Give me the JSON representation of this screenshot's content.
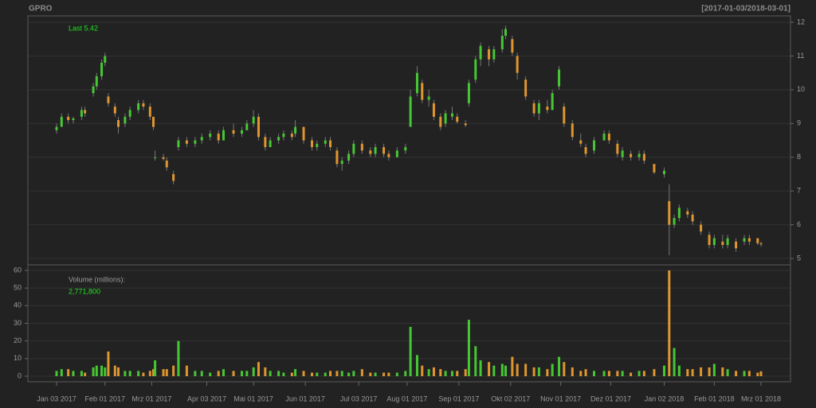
{
  "chart_data": {
    "type": "candlestick",
    "title": "GPRO",
    "range_text": "[2017-01-03/2018-03-01]",
    "last_text": "Last 5.42",
    "volume_title": "Volume (millions):",
    "volume_last_text": "2,771,800",
    "up_color": "#46c734",
    "down_color": "#e0962e",
    "xlim": [
      "2017-01-03",
      "2018-03-01"
    ],
    "xticks": [
      {
        "value": "2017-01-03",
        "label": "Jan 03 2017"
      },
      {
        "value": "2017-02-01",
        "label": "Feb 01 2017"
      },
      {
        "value": "2017-03-01",
        "label": "Mrz 01 2017"
      },
      {
        "value": "2017-04-03",
        "label": "Apr 03 2017"
      },
      {
        "value": "2017-05-01",
        "label": "Mai 01 2017"
      },
      {
        "value": "2017-06-01",
        "label": "Jun 01 2017"
      },
      {
        "value": "2017-07-03",
        "label": "Jul 03 2017"
      },
      {
        "value": "2017-08-01",
        "label": "Aug 01 2017"
      },
      {
        "value": "2017-09-01",
        "label": "Sep 01 2017"
      },
      {
        "value": "2017-10-02",
        "label": "Okt 02 2017"
      },
      {
        "value": "2017-11-01",
        "label": "Nov 01 2017"
      },
      {
        "value": "2017-12-01",
        "label": "Dez 01 2017"
      },
      {
        "value": "2018-01-02",
        "label": "Jan 02 2018"
      },
      {
        "value": "2018-02-01",
        "label": "Feb 01 2018"
      },
      {
        "value": "2018-03-01",
        "label": "Mrz 01 2018"
      }
    ],
    "ylim": [
      5,
      12
    ],
    "yticks": [
      5,
      6,
      7,
      8,
      9,
      10,
      11,
      12
    ],
    "y2lim": [
      0,
      60
    ],
    "y2ticks": [
      0,
      10,
      20,
      30,
      40,
      50,
      60
    ],
    "x": [
      "2017-01-03",
      "2017-01-06",
      "2017-01-10",
      "2017-01-13",
      "2017-01-18",
      "2017-01-20",
      "2017-01-25",
      "2017-01-27",
      "2017-01-30",
      "2017-02-01",
      "2017-02-03",
      "2017-02-07",
      "2017-02-09",
      "2017-02-13",
      "2017-02-16",
      "2017-02-21",
      "2017-02-24",
      "2017-02-28",
      "2017-03-02",
      "2017-03-03",
      "2017-03-08",
      "2017-03-10",
      "2017-03-14",
      "2017-03-17",
      "2017-03-22",
      "2017-03-27",
      "2017-03-31",
      "2017-04-05",
      "2017-04-10",
      "2017-04-13",
      "2017-04-19",
      "2017-04-24",
      "2017-04-27",
      "2017-05-01",
      "2017-05-04",
      "2017-05-08",
      "2017-05-11",
      "2017-05-16",
      "2017-05-19",
      "2017-05-24",
      "2017-05-26",
      "2017-05-31",
      "2017-06-05",
      "2017-06-08",
      "2017-06-13",
      "2017-06-16",
      "2017-06-20",
      "2017-06-23",
      "2017-06-27",
      "2017-06-30",
      "2017-07-05",
      "2017-07-10",
      "2017-07-13",
      "2017-07-18",
      "2017-07-21",
      "2017-07-26",
      "2017-07-31",
      "2017-08-03",
      "2017-08-07",
      "2017-08-10",
      "2017-08-14",
      "2017-08-17",
      "2017-08-21",
      "2017-08-24",
      "2017-08-28",
      "2017-08-31",
      "2017-09-05",
      "2017-09-07",
      "2017-09-11",
      "2017-09-14",
      "2017-09-19",
      "2017-09-22",
      "2017-09-27",
      "2017-09-29",
      "2017-10-03",
      "2017-10-06",
      "2017-10-11",
      "2017-10-16",
      "2017-10-19",
      "2017-10-24",
      "2017-10-27",
      "2017-10-31",
      "2017-11-03",
      "2017-11-08",
      "2017-11-13",
      "2017-11-16",
      "2017-11-21",
      "2017-11-27",
      "2017-11-30",
      "2017-12-05",
      "2017-12-08",
      "2017-12-13",
      "2017-12-18",
      "2017-12-21",
      "2017-12-27",
      "2018-01-02",
      "2018-01-05",
      "2018-01-08",
      "2018-01-11",
      "2018-01-16",
      "2018-01-19",
      "2018-01-24",
      "2018-01-29",
      "2018-02-01",
      "2018-02-06",
      "2018-02-09",
      "2018-02-14",
      "2018-02-19",
      "2018-02-22",
      "2018-02-27",
      "2018-03-01"
    ],
    "open": [
      8.8,
      8.9,
      9.2,
      9.1,
      9.2,
      9.4,
      9.9,
      10.1,
      10.4,
      10.8,
      9.8,
      9.5,
      9.1,
      9.0,
      9.2,
      9.4,
      9.6,
      9.5,
      9.2,
      8.0,
      8.0,
      7.9,
      7.5,
      8.3,
      8.5,
      8.4,
      8.5,
      8.6,
      8.7,
      8.5,
      8.8,
      8.7,
      8.8,
      9.0,
      9.2,
      8.6,
      8.3,
      8.5,
      8.6,
      8.7,
      8.7,
      8.9,
      8.5,
      8.3,
      8.4,
      8.5,
      8.2,
      7.8,
      7.9,
      8.1,
      8.4,
      8.2,
      8.1,
      8.3,
      8.1,
      8.0,
      8.2,
      8.9,
      9.9,
      10.2,
      9.7,
      9.6,
      9.2,
      9.0,
      9.2,
      9.2,
      9.0,
      9.6,
      10.3,
      10.9,
      11.2,
      10.9,
      11.2,
      11.6,
      11.5,
      11.0,
      10.3,
      9.6,
      9.3,
      9.5,
      9.4,
      10.1,
      9.5,
      9.0,
      8.5,
      8.3,
      8.2,
      8.5,
      8.7,
      8.4,
      8.0,
      8.1,
      8.0,
      8.1,
      7.8,
      7.5,
      6.7,
      6.0,
      6.2,
      6.4,
      6.3,
      6.0,
      5.7,
      5.4,
      5.5,
      5.4,
      5.5,
      5.5,
      5.6,
      5.6,
      5.45
    ],
    "high": [
      9.0,
      9.3,
      9.3,
      9.2,
      9.5,
      9.5,
      10.2,
      10.5,
      10.9,
      11.1,
      9.9,
      9.6,
      9.2,
      9.3,
      9.5,
      9.7,
      9.7,
      9.6,
      9.2,
      8.2,
      8.1,
      8.0,
      7.6,
      8.6,
      8.6,
      8.6,
      8.7,
      8.8,
      8.8,
      8.9,
      9.0,
      8.9,
      9.1,
      9.4,
      9.3,
      8.7,
      8.6,
      8.7,
      8.8,
      8.8,
      9.1,
      8.9,
      8.6,
      8.5,
      8.6,
      8.6,
      8.3,
      8.0,
      8.2,
      8.5,
      8.5,
      8.3,
      8.4,
      8.4,
      8.2,
      8.3,
      8.4,
      10.0,
      10.7,
      10.3,
      10.0,
      9.7,
      9.3,
      9.4,
      9.5,
      9.3,
      9.1,
      10.3,
      11.0,
      11.4,
      11.3,
      11.3,
      11.8,
      11.9,
      11.6,
      11.1,
      10.4,
      9.7,
      9.7,
      9.7,
      10.0,
      10.7,
      9.6,
      9.1,
      8.7,
      8.4,
      8.6,
      8.8,
      8.8,
      8.5,
      8.3,
      8.2,
      8.2,
      8.2,
      7.8,
      7.7,
      7.2,
      6.3,
      6.6,
      6.5,
      6.4,
      6.1,
      5.8,
      5.7,
      5.7,
      5.7,
      5.6,
      5.7,
      5.7,
      5.6,
      5.5
    ],
    "low": [
      8.7,
      8.9,
      9.0,
      9.0,
      9.1,
      9.2,
      9.8,
      10.0,
      10.3,
      10.7,
      9.5,
      9.2,
      8.7,
      8.9,
      9.1,
      9.3,
      9.4,
      9.1,
      8.8,
      7.9,
      7.9,
      7.6,
      7.2,
      8.2,
      8.3,
      8.3,
      8.4,
      8.5,
      8.4,
      8.5,
      8.6,
      8.6,
      8.8,
      8.9,
      8.5,
      8.2,
      8.3,
      8.4,
      8.5,
      8.5,
      8.6,
      8.4,
      8.2,
      8.2,
      8.3,
      8.2,
      7.7,
      7.6,
      7.8,
      8.0,
      8.1,
      8.0,
      8.0,
      8.0,
      7.9,
      8.0,
      8.1,
      8.9,
      9.8,
      9.6,
      9.5,
      9.1,
      8.8,
      8.9,
      9.1,
      9.0,
      8.9,
      9.5,
      10.2,
      10.7,
      10.7,
      10.8,
      11.1,
      11.5,
      11.0,
      10.3,
      9.7,
      9.2,
      9.1,
      9.3,
      9.4,
      10.0,
      8.9,
      8.5,
      8.3,
      8.0,
      8.1,
      8.5,
      8.4,
      8.0,
      7.9,
      7.9,
      7.9,
      7.8,
      7.5,
      7.4,
      5.1,
      5.9,
      6.1,
      6.2,
      6.0,
      5.7,
      5.3,
      5.3,
      5.3,
      5.3,
      5.2,
      5.4,
      5.4,
      5.4,
      5.35
    ],
    "close": [
      8.9,
      9.2,
      9.1,
      9.15,
      9.4,
      9.3,
      10.1,
      10.4,
      10.8,
      11.0,
      9.6,
      9.3,
      8.9,
      9.2,
      9.4,
      9.6,
      9.5,
      9.2,
      8.9,
      8.0,
      7.95,
      7.7,
      7.3,
      8.5,
      8.4,
      8.5,
      8.6,
      8.7,
      8.5,
      8.8,
      8.7,
      8.8,
      9.0,
      9.2,
      8.6,
      8.3,
      8.5,
      8.6,
      8.7,
      8.6,
      8.9,
      8.5,
      8.3,
      8.4,
      8.5,
      8.3,
      7.8,
      7.9,
      8.1,
      8.4,
      8.2,
      8.1,
      8.3,
      8.1,
      8.0,
      8.2,
      8.3,
      9.8,
      10.5,
      9.7,
      9.8,
      9.2,
      8.9,
      9.3,
      9.3,
      9.05,
      8.95,
      10.2,
      10.9,
      11.3,
      10.9,
      11.2,
      11.6,
      11.8,
      11.1,
      10.5,
      9.8,
      9.3,
      9.6,
      9.4,
      9.9,
      10.6,
      9.0,
      8.6,
      8.4,
      8.1,
      8.5,
      8.7,
      8.5,
      8.1,
      8.2,
      8.0,
      8.1,
      7.9,
      7.55,
      7.6,
      6.0,
      6.2,
      6.5,
      6.3,
      6.1,
      5.8,
      5.4,
      5.6,
      5.4,
      5.6,
      5.3,
      5.6,
      5.5,
      5.45,
      5.42
    ],
    "volume": [
      3,
      4,
      4,
      3,
      3,
      2,
      5,
      6,
      6,
      5,
      14,
      6,
      5,
      3,
      3,
      3,
      2,
      3,
      4,
      9,
      4,
      4,
      6,
      20,
      6,
      3,
      3,
      2,
      3,
      4,
      3,
      3,
      3,
      5,
      8,
      5,
      3,
      3,
      2,
      2,
      4,
      3,
      2,
      2,
      2,
      3,
      3,
      3,
      2,
      3,
      4,
      2,
      2,
      2,
      2,
      2,
      3,
      28,
      12,
      6,
      4,
      5,
      4,
      3,
      3,
      3,
      4,
      32,
      17,
      9,
      8,
      6,
      7,
      6,
      11,
      7,
      7,
      5,
      5,
      4,
      7,
      11,
      8,
      5,
      3,
      4,
      3,
      3,
      3,
      3,
      3,
      2,
      3,
      3,
      4,
      6,
      60,
      16,
      6,
      4,
      4,
      5,
      5,
      7,
      5,
      4,
      3,
      3,
      3,
      2,
      2.7718
    ]
  }
}
